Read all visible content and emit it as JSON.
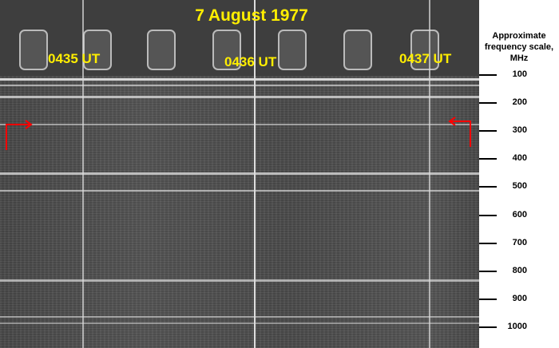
{
  "title": "7 August 1977",
  "times": [
    "0435 UT",
    "0436 UT",
    "0437 UT"
  ],
  "scale": {
    "title": "Approximate frequency scale, MHz",
    "ticks": [
      "100",
      "200",
      "300",
      "400",
      "500",
      "600",
      "700",
      "800",
      "900",
      "1000"
    ]
  },
  "colors": {
    "label": "#ffee00",
    "arrow": "#ff0000",
    "film": "#4e4e4e"
  }
}
